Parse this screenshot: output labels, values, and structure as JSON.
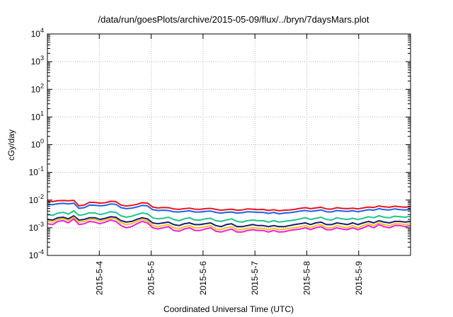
{
  "chart_data": {
    "type": "line",
    "title": "/data/run/goesPlots/archive/2015-05-09/flux/../bryn/7daysMars.plot",
    "xlabel": "Coordinated Universal Time (UTC)",
    "ylabel": "cGy/day",
    "yscale": "log",
    "ylim": [
      0.0001,
      10000
    ],
    "yticks": [
      {
        "base": "10",
        "exp": "-4"
      },
      {
        "base": "10",
        "exp": "-3"
      },
      {
        "base": "10",
        "exp": "-2"
      },
      {
        "base": "10",
        "exp": "-1"
      },
      {
        "base": "10",
        "exp": "0"
      },
      {
        "base": "10",
        "exp": "1"
      },
      {
        "base": "10",
        "exp": "2"
      },
      {
        "base": "10",
        "exp": "3"
      },
      {
        "base": "10",
        "exp": "4"
      }
    ],
    "xlim": [
      "2015-05-03 00:00",
      "2015-05-09 23:59"
    ],
    "xticks": [
      "2015-5-4",
      "2015-5-5",
      "2015-5-6",
      "2015-5-7",
      "2015-5-8",
      "2015-5-9"
    ],
    "grid": true,
    "series": [
      {
        "color": "#e8141c",
        "values": [
          0.009,
          0.0088,
          0.0095,
          0.0096,
          0.0094,
          0.0098,
          0.0062,
          0.0066,
          0.0083,
          0.0082,
          0.0078,
          0.008,
          0.009,
          0.0088,
          0.0066,
          0.0061,
          0.0064,
          0.007,
          0.008,
          0.0078,
          0.0056,
          0.0052,
          0.0054,
          0.0053,
          0.0048,
          0.0046,
          0.0049,
          0.0051,
          0.0047,
          0.0046,
          0.0049,
          0.005,
          0.0046,
          0.0043,
          0.0045,
          0.0047,
          0.0043,
          0.0044,
          0.0048,
          0.0047,
          0.0045,
          0.0046,
          0.0042,
          0.0045,
          0.0041,
          0.0043,
          0.0044,
          0.0046,
          0.005,
          0.0053,
          0.0049,
          0.0052,
          0.0055,
          0.0048,
          0.0047,
          0.0053,
          0.005,
          0.0049,
          0.0051,
          0.0048,
          0.0052,
          0.0056,
          0.0054,
          0.0061,
          0.0057,
          0.0055,
          0.006,
          0.0057,
          0.0055,
          0.0058
        ]
      },
      {
        "color": "#1f5fe8",
        "values": [
          0.007,
          0.0068,
          0.0074,
          0.0076,
          0.0073,
          0.0077,
          0.005,
          0.0053,
          0.0066,
          0.0065,
          0.0062,
          0.0064,
          0.0072,
          0.007,
          0.0053,
          0.0049,
          0.0051,
          0.0056,
          0.0064,
          0.0062,
          0.0045,
          0.0042,
          0.0043,
          0.0042,
          0.0038,
          0.0037,
          0.0039,
          0.0041,
          0.0037,
          0.0037,
          0.0039,
          0.004,
          0.0036,
          0.0034,
          0.0036,
          0.0037,
          0.0034,
          0.0035,
          0.0038,
          0.0037,
          0.0036,
          0.0036,
          0.0033,
          0.0036,
          0.0032,
          0.0034,
          0.0035,
          0.0037,
          0.004,
          0.0042,
          0.0039,
          0.0041,
          0.0044,
          0.0038,
          0.0037,
          0.0042,
          0.004,
          0.0039,
          0.0041,
          0.0038,
          0.0041,
          0.0045,
          0.0043,
          0.0049,
          0.0045,
          0.0044,
          0.0048,
          0.0045,
          0.0044,
          0.0046
        ]
      },
      {
        "color": "#1ec48a",
        "values": [
          0.003,
          0.0028,
          0.0034,
          0.0036,
          0.0031,
          0.0041,
          0.0028,
          0.003,
          0.0035,
          0.0034,
          0.003,
          0.0033,
          0.0038,
          0.0036,
          0.0027,
          0.0024,
          0.0026,
          0.003,
          0.0034,
          0.0032,
          0.0023,
          0.0021,
          0.0022,
          0.0024,
          0.002,
          0.0018,
          0.0021,
          0.0023,
          0.0019,
          0.0019,
          0.0021,
          0.0022,
          0.0018,
          0.0017,
          0.0019,
          0.0021,
          0.0017,
          0.0016,
          0.0018,
          0.0019,
          0.0018,
          0.0018,
          0.0016,
          0.0018,
          0.0016,
          0.0017,
          0.0018,
          0.0019,
          0.0021,
          0.0023,
          0.002,
          0.0022,
          0.0024,
          0.002,
          0.0019,
          0.0023,
          0.0021,
          0.002,
          0.0022,
          0.002,
          0.0022,
          0.0025,
          0.0023,
          0.0027,
          0.0024,
          0.0023,
          0.0026,
          0.0025,
          0.0024,
          0.0026
        ]
      },
      {
        "color": "#1a1a6e",
        "values": [
          0.002,
          0.0019,
          0.0023,
          0.0024,
          0.0021,
          0.0027,
          0.0019,
          0.002,
          0.0023,
          0.0023,
          0.002,
          0.0022,
          0.0025,
          0.0024,
          0.0018,
          0.0016,
          0.0017,
          0.002,
          0.0023,
          0.0021,
          0.0015,
          0.0014,
          0.0015,
          0.0016,
          0.0013,
          0.0012,
          0.0014,
          0.0015,
          0.0013,
          0.0013,
          0.0014,
          0.0015,
          0.0012,
          0.0011,
          0.0013,
          0.0014,
          0.0011,
          0.0011,
          0.0012,
          0.0013,
          0.0012,
          0.0012,
          0.0011,
          0.0012,
          0.0011,
          0.0011,
          0.0012,
          0.0013,
          0.0014,
          0.0015,
          0.0013,
          0.0015,
          0.0016,
          0.0013,
          0.0013,
          0.0015,
          0.0014,
          0.0013,
          0.0015,
          0.0013,
          0.0015,
          0.0017,
          0.0015,
          0.0018,
          0.0016,
          0.0015,
          0.0017,
          0.0017,
          0.0016,
          0.0017
        ]
      },
      {
        "color": "#f0c419",
        "values": [
          0.0017,
          0.0016,
          0.002,
          0.0021,
          0.0018,
          0.0024,
          0.0016,
          0.0017,
          0.002,
          0.002,
          0.0017,
          0.0019,
          0.0022,
          0.0021,
          0.0015,
          0.0013,
          0.0014,
          0.0017,
          0.002,
          0.0018,
          0.0012,
          0.0011,
          0.0012,
          0.0013,
          0.001,
          0.0009,
          0.0011,
          0.0012,
          0.001,
          0.001,
          0.0011,
          0.0012,
          0.0009,
          0.00085,
          0.001,
          0.0011,
          0.00085,
          0.00085,
          0.00095,
          0.001,
          0.00095,
          0.00095,
          0.00085,
          0.00095,
          0.00085,
          0.00088,
          0.00095,
          0.001,
          0.0011,
          0.0012,
          0.001,
          0.0012,
          0.0013,
          0.001,
          0.001,
          0.0012,
          0.0011,
          0.001,
          0.0012,
          0.001,
          0.0012,
          0.0014,
          0.0012,
          0.0015,
          0.0013,
          0.0012,
          0.0014,
          0.0014,
          0.0013,
          0.0014
        ]
      },
      {
        "color": "#ee20d8",
        "values": [
          0.0014,
          0.0013,
          0.0017,
          0.0018,
          0.0015,
          0.0021,
          0.0013,
          0.0014,
          0.0017,
          0.0016,
          0.0014,
          0.0016,
          0.0019,
          0.0017,
          0.0012,
          0.001,
          0.0011,
          0.0014,
          0.0017,
          0.0015,
          0.001,
          0.0009,
          0.001,
          0.0011,
          0.0008,
          0.00075,
          0.0009,
          0.001,
          0.0008,
          0.0008,
          0.0009,
          0.001,
          0.00075,
          0.0007,
          0.0008,
          0.0009,
          0.0007,
          0.0007,
          0.0008,
          0.00085,
          0.0008,
          0.0008,
          0.0007,
          0.0008,
          0.0007,
          0.00072,
          0.0008,
          0.00085,
          0.0009,
          0.001,
          0.00085,
          0.001,
          0.0011,
          0.00085,
          0.00085,
          0.001,
          0.0009,
          0.00085,
          0.001,
          0.00085,
          0.001,
          0.0012,
          0.001,
          0.0013,
          0.0011,
          0.001,
          0.0012,
          0.0012,
          0.0011,
          0.0012
        ]
      }
    ]
  }
}
